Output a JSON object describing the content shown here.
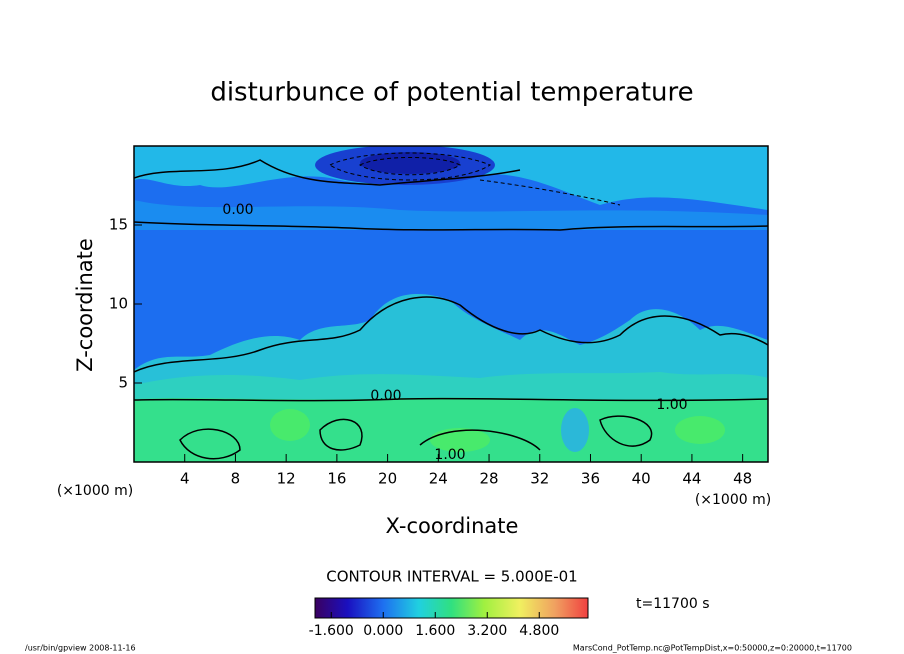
{
  "chart_data": {
    "type": "contour",
    "title": "disturbunce of potential temperature",
    "xlabel": "X-coordinate",
    "ylabel": "Z-coordinate",
    "xunit": "(×1000 m)",
    "yunit": "(×1000 m)",
    "xlim": [
      0,
      50
    ],
    "xticks": [
      4,
      8,
      12,
      16,
      20,
      24,
      28,
      32,
      36,
      40,
      44,
      48
    ],
    "ylim": [
      0,
      20
    ],
    "yticks": [
      5,
      10,
      15
    ],
    "contour_labels": [
      "0.00",
      "0.00",
      "1.00",
      "1.00"
    ],
    "contour_interval": "CONTOUR INTERVAL = 5.000E-01",
    "clim": [
      -2.1,
      6.3
    ],
    "cticks": [
      {
        "value": -1.6,
        "label": "-1.600"
      },
      {
        "value": 0,
        "label": "0.000"
      },
      {
        "value": 1.6,
        "label": "1.600"
      },
      {
        "value": 3.2,
        "label": "3.200"
      },
      {
        "value": 4.8,
        "label": "4.800"
      }
    ],
    "time_label": "t=11700 s",
    "footer_left": "/usr/bin/gpview  2008-11-16",
    "footer_right": "MarsCond_PotTemp.nc@PotTempDist,x=0:50000,z=0:20000,t=11700"
  }
}
